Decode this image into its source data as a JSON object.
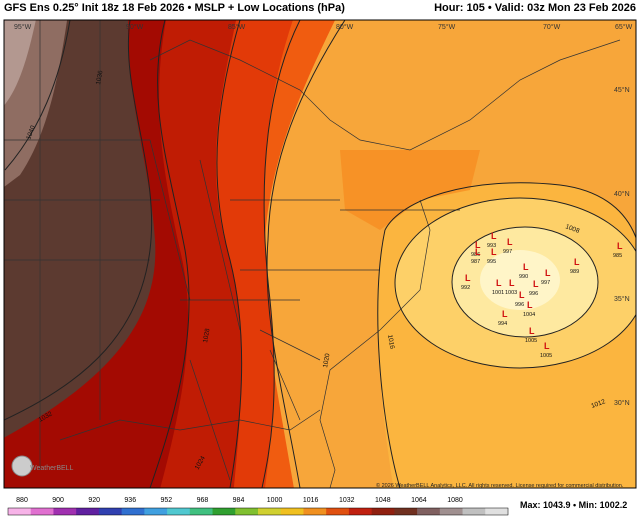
{
  "header": {
    "title": "GFS Ens 0.25° Init 18z 18 Feb 2026 • MSLP + Low Locations (hPa)",
    "valid": "Hour: 105 • Valid: 03z Mon 23 Feb 2026"
  },
  "map": {
    "longitudes": [
      "95°W",
      "90°W",
      "85°W",
      "80°W",
      "75°W",
      "70°W",
      "65°W"
    ],
    "latitudes": [
      "45°N",
      "40°N",
      "35°N",
      "30°N"
    ],
    "isobars": [
      "1040",
      "1036",
      "1032",
      "1028",
      "1024",
      "1020",
      "1016",
      "1012",
      "1008"
    ],
    "low_symbol": "L",
    "lows": [
      "993",
      "997",
      "986",
      "987",
      "995",
      "992",
      "990",
      "997",
      "1001",
      "1003",
      "989",
      "985",
      "996",
      "994",
      "996",
      "1004",
      "1005",
      "1005"
    ],
    "copyright": "© 2026 WeatherBELL Analytics, LLC. All rights reserved. License required for commercial distribution.",
    "logo": "WeatherBELL"
  },
  "colorbar": {
    "labels": [
      "880",
      "900",
      "920",
      "936",
      "952",
      "968",
      "984",
      "1000",
      "1016",
      "1032",
      "1048",
      "1064",
      "1080"
    ]
  },
  "footer": {
    "stats": "Max: 1043.9 • Min: 1002.2"
  }
}
